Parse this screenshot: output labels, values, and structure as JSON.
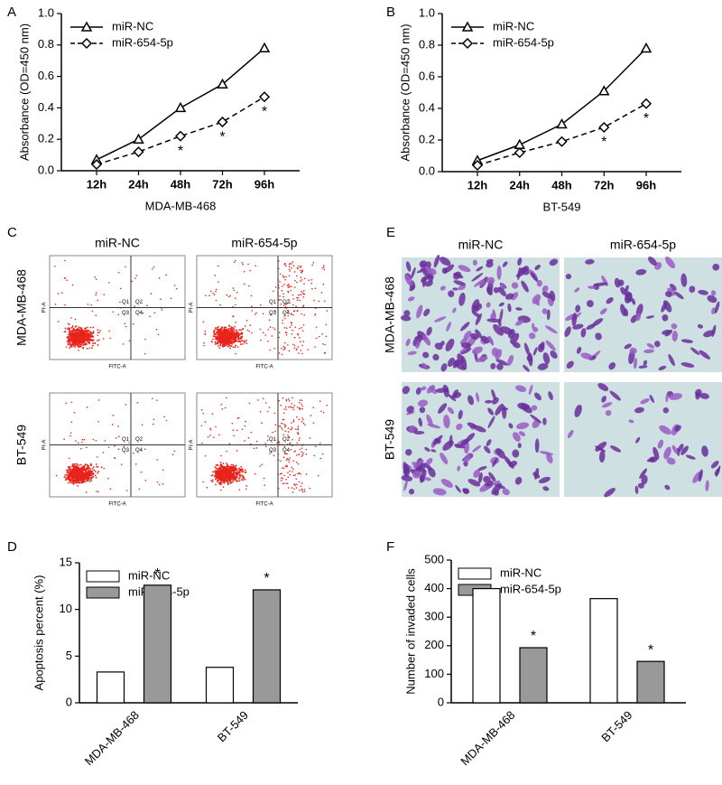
{
  "panel_letters": [
    "A",
    "B",
    "C",
    "D",
    "E",
    "F"
  ],
  "chart_data": [
    {
      "type": "line",
      "x_label": "MDA-MB-468",
      "y_label": "Absorbance (OD=450 nm)",
      "categories": [
        "12h",
        "24h",
        "48h",
        "72h",
        "96h"
      ],
      "series": [
        {
          "name": "miR-NC",
          "color": "#000000",
          "marker": "triangle",
          "dash": "solid",
          "values": [
            0.07,
            0.2,
            0.4,
            0.55,
            0.78
          ]
        },
        {
          "name": "miR-654-5p",
          "color": "#000000",
          "marker": "diamond",
          "dash": "dashed",
          "values": [
            0.04,
            0.12,
            0.22,
            0.31,
            0.47
          ],
          "significance": [
            null,
            null,
            "*",
            "*",
            "*"
          ]
        }
      ],
      "ylim": [
        0,
        1
      ],
      "yticks": [
        {
          "value": 0,
          "label": "0.0"
        },
        0.2,
        0.4,
        0.6,
        0.8,
        {
          "value": 1,
          "label": "1.0"
        }
      ]
    },
    {
      "type": "line",
      "x_label": "BT-549",
      "y_label": "Absorbance (OD=450 nm)",
      "categories": [
        "12h",
        "24h",
        "48h",
        "72h",
        "96h"
      ],
      "series": [
        {
          "name": "miR-NC",
          "color": "#000000",
          "marker": "triangle",
          "dash": "solid",
          "values": [
            0.07,
            0.17,
            0.3,
            0.51,
            0.78
          ]
        },
        {
          "name": "miR-654-5p",
          "color": "#000000",
          "marker": "diamond",
          "dash": "dashed",
          "values": [
            0.04,
            0.12,
            0.19,
            0.28,
            0.43
          ],
          "significance": [
            null,
            null,
            null,
            "*",
            "*"
          ]
        }
      ],
      "ylim": [
        0,
        1
      ],
      "yticks": [
        {
          "value": 0,
          "label": "0.0"
        },
        0.2,
        0.4,
        0.6,
        0.8,
        {
          "value": 1,
          "label": "1.0"
        }
      ]
    },
    {
      "type": "bar",
      "y_label": "Apoptosis percent (%)",
      "categories": [
        "MDA-MB-468",
        "BT-549"
      ],
      "series": [
        {
          "name": "miR-NC",
          "color": "#ffffff",
          "values": [
            3.3,
            3.8
          ]
        },
        {
          "name": "miR-654-5p",
          "color": "#999999",
          "values": [
            12.6,
            12.1
          ],
          "significance": [
            "*",
            "*"
          ]
        }
      ],
      "ylim": [
        0,
        15
      ],
      "yticks": [
        0,
        5,
        10,
        15
      ]
    },
    {
      "type": "bar",
      "y_label": "Number of invaded cells",
      "categories": [
        "MDA-MB-468",
        "BT-549"
      ],
      "series": [
        {
          "name": "miR-NC",
          "color": "#ffffff",
          "values": [
            400,
            365
          ]
        },
        {
          "name": "miR-654-5p",
          "color": "#999999",
          "values": [
            193,
            145
          ],
          "significance": [
            "*",
            "*"
          ]
        }
      ],
      "ylim": [
        0,
        500
      ],
      "yticks": [
        0,
        100,
        200,
        300,
        400,
        500
      ]
    }
  ],
  "flow_cytometry": {
    "columns": [
      "miR-NC",
      "miR-654-5p"
    ],
    "rows": [
      "MDA-MB-468",
      "BT-549"
    ],
    "quadrants": [
      "Q1",
      "Q2",
      "Q3",
      "Q4"
    ],
    "x_label": "FITC-A",
    "y_label": "PI-A"
  },
  "invasion_images": {
    "columns": [
      "miR-NC",
      "miR-654-5p"
    ],
    "rows": [
      "MDA-MB-468",
      "BT-549"
    ]
  }
}
